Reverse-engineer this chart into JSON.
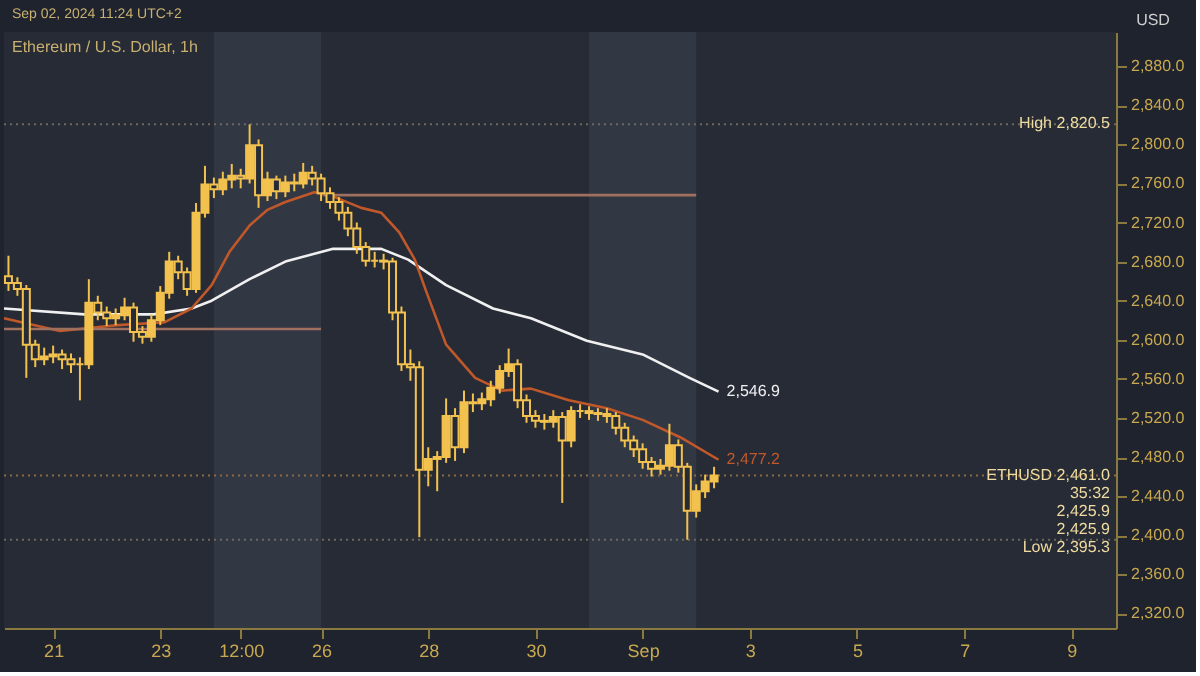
{
  "chart_data": {
    "type": "candlestick",
    "title": "Ethereum / U.S. Dollar, 1h",
    "ylabel": "USD",
    "color": "#f2c14e",
    "annotations": [
      "Sep 02, 2024 11:24 UTC+2",
      {
        "text": "2,820.5",
        "y": 2820.5
      },
      {
        "text": "2,461.0",
        "y": 2461.0
      },
      {
        "text": "35:32",
        "y": 2461.0
      },
      "2,425.9",
      "2,425.9",
      {
        "text": "2,395.3",
        "y": 2395.3
      }
    ],
    "x": [
      "2024-08-20T04:00",
      "2024-08-20T08:00",
      "2024-08-20T12:00",
      "2024-08-20T16:00",
      "2024-08-20T20:00",
      "2024-08-21T00:00",
      "2024-08-21T04:00",
      "2024-08-21T08:00",
      "2024-08-21T12:00",
      "2024-08-21T16:00",
      "2024-08-21T20:00",
      "2024-08-22T00:00",
      "2024-08-22T04:00",
      "2024-08-22T08:00",
      "2024-08-22T12:00",
      "2024-08-22T16:00",
      "2024-08-22T20:00",
      "2024-08-23T00:00",
      "2024-08-23T04:00",
      "2024-08-23T08:00",
      "2024-08-23T12:00",
      "2024-08-23T16:00",
      "2024-08-23T20:00",
      "2024-08-24T00:00",
      "2024-08-24T04:00",
      "2024-08-24T08:00",
      "2024-08-24T12:00",
      "2024-08-24T16:00",
      "2024-08-24T20:00",
      "2024-08-25T00:00",
      "2024-08-25T04:00",
      "2024-08-25T08:00",
      "2024-08-25T12:00",
      "2024-08-25T16:00",
      "2024-08-25T20:00",
      "2024-08-26T00:00",
      "2024-08-26T04:00",
      "2024-08-26T08:00",
      "2024-08-26T12:00",
      "2024-08-26T16:00",
      "2024-08-26T20:00",
      "2024-08-27T00:00",
      "2024-08-27T04:00",
      "2024-08-27T08:00",
      "2024-08-27T12:00",
      "2024-08-27T16:00",
      "2024-08-27T20:00",
      "2024-08-28T00:00",
      "2024-08-28T04:00",
      "2024-08-28T08:00",
      "2024-08-28T12:00",
      "2024-08-28T16:00",
      "2024-08-28T20:00",
      "2024-08-29T00:00",
      "2024-08-29T04:00",
      "2024-08-29T08:00",
      "2024-08-29T12:00",
      "2024-08-29T16:00",
      "2024-08-29T20:00",
      "2024-08-30T00:00",
      "2024-08-30T04:00",
      "2024-08-30T08:00",
      "2024-08-30T12:00",
      "2024-08-30T16:00",
      "2024-08-30T20:00",
      "2024-08-31T00:00",
      "2024-08-31T04:00",
      "2024-08-31T08:00",
      "2024-08-31T12:00",
      "2024-08-31T16:00",
      "2024-08-31T20:00",
      "2024-09-01T00:00",
      "2024-09-01T04:00",
      "2024-09-01T08:00",
      "2024-09-01T12:00",
      "2024-09-01T16:00",
      "2024-09-01T20:00",
      "2024-09-02T00:00",
      "2024-09-02T04:00",
      "2024-09-02T08:00"
    ],
    "ohlc": [
      [
        2665,
        2686,
        2650,
        2658
      ],
      [
        2658,
        2664,
        2645,
        2652
      ],
      [
        2652,
        2656,
        2561,
        2595
      ],
      [
        2595,
        2600,
        2572,
        2580
      ],
      [
        2580,
        2592,
        2574,
        2583
      ],
      [
        2583,
        2594,
        2576,
        2585
      ],
      [
        2585,
        2590,
        2570,
        2580
      ],
      [
        2580,
        2586,
        2566,
        2575
      ],
      [
        2575,
        2582,
        2538,
        2575
      ],
      [
        2575,
        2662,
        2570,
        2638
      ],
      [
        2638,
        2645,
        2620,
        2628
      ],
      [
        2628,
        2634,
        2614,
        2622
      ],
      [
        2622,
        2632,
        2615,
        2625
      ],
      [
        2625,
        2643,
        2620,
        2633
      ],
      [
        2633,
        2638,
        2598,
        2608
      ],
      [
        2608,
        2614,
        2596,
        2603
      ],
      [
        2603,
        2626,
        2598,
        2620
      ],
      [
        2620,
        2655,
        2615,
        2648
      ],
      [
        2648,
        2690,
        2642,
        2680
      ],
      [
        2680,
        2686,
        2662,
        2669
      ],
      [
        2669,
        2674,
        2645,
        2652
      ],
      [
        2652,
        2740,
        2648,
        2730
      ],
      [
        2730,
        2778,
        2725,
        2759
      ],
      [
        2759,
        2766,
        2745,
        2754
      ],
      [
        2754,
        2772,
        2748,
        2764
      ],
      [
        2764,
        2780,
        2755,
        2768
      ],
      [
        2768,
        2775,
        2755,
        2765
      ],
      [
        2765,
        2820.5,
        2760,
        2799
      ],
      [
        2799,
        2805,
        2735,
        2748
      ],
      [
        2748,
        2772,
        2742,
        2764
      ],
      [
        2764,
        2768,
        2744,
        2752
      ],
      [
        2752,
        2768,
        2746,
        2761
      ],
      [
        2761,
        2770,
        2752,
        2760
      ],
      [
        2760,
        2781,
        2755,
        2771
      ],
      [
        2771,
        2778,
        2758,
        2765
      ],
      [
        2765,
        2770,
        2742,
        2750
      ],
      [
        2750,
        2756,
        2734,
        2741
      ],
      [
        2741,
        2746,
        2722,
        2730
      ],
      [
        2730,
        2736,
        2706,
        2714
      ],
      [
        2714,
        2720,
        2688,
        2695
      ],
      [
        2695,
        2700,
        2675,
        2681
      ],
      [
        2681,
        2690,
        2674,
        2681
      ],
      [
        2681,
        2688,
        2672,
        2680
      ],
      [
        2680,
        2684,
        2620,
        2628
      ],
      [
        2628,
        2634,
        2568,
        2575
      ],
      [
        2575,
        2590,
        2558,
        2572
      ],
      [
        2572,
        2578,
        2398,
        2467
      ],
      [
        2467,
        2490,
        2450,
        2478
      ],
      [
        2478,
        2486,
        2445,
        2480
      ],
      [
        2480,
        2540,
        2474,
        2522
      ],
      [
        2522,
        2530,
        2476,
        2490
      ],
      [
        2490,
        2548,
        2484,
        2536
      ],
      [
        2536,
        2545,
        2526,
        2535
      ],
      [
        2535,
        2546,
        2528,
        2539
      ],
      [
        2539,
        2558,
        2532,
        2551
      ],
      [
        2551,
        2574,
        2545,
        2568
      ],
      [
        2568,
        2591,
        2562,
        2575
      ],
      [
        2575,
        2580,
        2530,
        2538
      ],
      [
        2538,
        2544,
        2515,
        2522
      ],
      [
        2522,
        2528,
        2510,
        2517
      ],
      [
        2517,
        2524,
        2508,
        2516
      ],
      [
        2516,
        2528,
        2510,
        2521
      ],
      [
        2521,
        2526,
        2433,
        2497
      ],
      [
        2497,
        2532,
        2490,
        2527
      ],
      [
        2527,
        2534,
        2520,
        2527
      ],
      [
        2527,
        2532,
        2518,
        2525
      ],
      [
        2525,
        2530,
        2517,
        2524
      ],
      [
        2524,
        2530,
        2515,
        2522
      ],
      [
        2522,
        2526,
        2503,
        2510
      ],
      [
        2510,
        2515,
        2490,
        2497
      ],
      [
        2497,
        2502,
        2480,
        2488
      ],
      [
        2488,
        2494,
        2468,
        2475
      ],
      [
        2475,
        2480,
        2460,
        2468
      ],
      [
        2468,
        2478,
        2462,
        2471
      ],
      [
        2471,
        2514,
        2466,
        2492
      ],
      [
        2492,
        2498,
        2464,
        2470
      ],
      [
        2470,
        2474,
        2395.3,
        2425
      ],
      [
        2425,
        2452,
        2418,
        2445
      ],
      [
        2445,
        2462,
        2438,
        2455
      ],
      [
        2455,
        2470,
        2448,
        2461
      ]
    ],
    "series": [
      {
        "type": "line",
        "color": "#f0f0f0",
        "x": [
          "2024-08-20T02:00",
          "2024-08-21T14:00",
          "2024-08-22T21:00",
          "2024-08-23T14:00",
          "2024-08-23T23:00",
          "2024-08-24T16:00",
          "2024-08-25T08:00",
          "2024-08-26T05:00",
          "2024-08-27T03:00",
          "2024-08-27T15:00",
          "2024-08-28T08:00",
          "2024-08-29T05:00",
          "2024-08-29T22:00",
          "2024-08-30T23:00",
          "2024-09-01T00:00",
          "2024-09-01T21:00",
          "2024-09-02T10:00"
        ],
        "values": [
          2632,
          2626,
          2626,
          2632,
          2640,
          2662,
          2680,
          2693,
          2693,
          2682,
          2656,
          2632,
          2622,
          2599,
          2585,
          2561,
          2546.9
        ],
        "value_labels": [
          null,
          null,
          null,
          null,
          null,
          null,
          null,
          null,
          null,
          null,
          null,
          null,
          null,
          null,
          null,
          null,
          "2,546.9"
        ]
      },
      {
        "type": "line",
        "color": "#c0582a",
        "x": [
          "2024-08-20T02:00",
          "2024-08-21T03:00",
          "2024-08-22T05:00",
          "2024-08-23T02:00",
          "2024-08-23T14:00",
          "2024-08-23T23:00",
          "2024-08-24T07:00",
          "2024-08-24T16:00",
          "2024-08-25T00:00",
          "2024-08-25T08:00",
          "2024-08-25T21:00",
          "2024-08-26T05:00",
          "2024-08-26T18:00",
          "2024-08-27T03:00",
          "2024-08-27T11:00",
          "2024-08-27T18:00",
          "2024-08-27T23:00",
          "2024-08-28T08:00",
          "2024-08-28T21:00",
          "2024-08-29T09:00",
          "2024-08-29T22:00",
          "2024-08-30T15:00",
          "2024-08-31T08:00",
          "2024-09-01T00:00",
          "2024-09-01T17:00",
          "2024-09-02T10:00"
        ],
        "values": [
          2622,
          2609,
          2615,
          2618,
          2632,
          2656,
          2690,
          2717,
          2733,
          2741,
          2751,
          2747,
          2735,
          2730,
          2710,
          2682,
          2650,
          2595,
          2561,
          2548,
          2550,
          2538,
          2530,
          2518,
          2500,
          2477.2
        ],
        "value_labels": [
          null,
          null,
          null,
          null,
          null,
          null,
          null,
          null,
          null,
          null,
          null,
          null,
          null,
          null,
          null,
          null,
          null,
          null,
          null,
          null,
          null,
          null,
          null,
          null,
          null,
          "2,477.2"
        ]
      },
      {
        "type": "line",
        "color": "#a0705f",
        "x": [
          "2024-08-20T02:00",
          "2024-08-26T00:00"
        ],
        "values": [
          2611,
          2611
        ]
      },
      {
        "type": "line",
        "color": "#a0705f",
        "x": [
          "2024-08-26T01:00",
          "2024-09-02T00:00"
        ],
        "values": [
          2748,
          2748
        ]
      }
    ],
    "ref_lines": [
      {
        "axis": "y",
        "value": 2820.5,
        "label": "High",
        "color": "#6b6a5a",
        "line_style": "dotted"
      },
      {
        "axis": "y",
        "value": 2461.0,
        "label": "ETHUSD",
        "color": "#8a6a40",
        "line_style": "dotted"
      },
      {
        "axis": "y",
        "value": 2395.3,
        "label": "Low",
        "color": "#6b6a5a",
        "line_style": "dotted"
      }
    ],
    "bands": [
      {
        "axis": "x",
        "from": "2024-08-24",
        "to": "2024-08-26",
        "color": "#323744"
      },
      {
        "axis": "x",
        "from": "2024-08-31",
        "to": "2024-09-02",
        "color": "#323744"
      }
    ],
    "xlim": [
      "2024-08-20T02:00",
      "2024-09-09T20:00"
    ],
    "xticks": [
      {
        "value": "2024-08-21",
        "label": "21"
      },
      {
        "value": "2024-08-23",
        "label": "23"
      },
      {
        "value": "2024-08-24T12:00",
        "label": "12:00"
      },
      {
        "value": "2024-08-26",
        "label": "26"
      },
      {
        "value": "2024-08-28",
        "label": "28"
      },
      {
        "value": "2024-08-30",
        "label": "30"
      },
      {
        "value": "2024-09-01",
        "label": "Sep"
      },
      {
        "value": "2024-09-03",
        "label": "3"
      },
      {
        "value": "2024-09-05",
        "label": "5"
      },
      {
        "value": "2024-09-07",
        "label": "7"
      },
      {
        "value": "2024-09-09",
        "label": "9"
      }
    ],
    "ylim": [
      2305,
      2915
    ],
    "yticks": [
      {
        "value": 2320,
        "label": "2,320.0"
      },
      {
        "value": 2360,
        "label": "2,360.0"
      },
      {
        "value": 2400,
        "label": "2,400.0"
      },
      {
        "value": 2440,
        "label": "2,440.0"
      },
      {
        "value": 2480,
        "label": "2,480.0"
      },
      {
        "value": 2520,
        "label": "2,520.0"
      },
      {
        "value": 2560,
        "label": "2,560.0"
      },
      {
        "value": 2600,
        "label": "2,600.0"
      },
      {
        "value": 2640,
        "label": "2,640.0"
      },
      {
        "value": 2680,
        "label": "2,680.0"
      },
      {
        "value": 2720,
        "label": "2,720.0"
      },
      {
        "value": 2760,
        "label": "2,760.0"
      },
      {
        "value": 2800,
        "label": "2,800.0"
      },
      {
        "value": 2840,
        "label": "2,840.0"
      },
      {
        "value": 2880,
        "label": "2,880.0"
      }
    ],
    "grid": false
  }
}
